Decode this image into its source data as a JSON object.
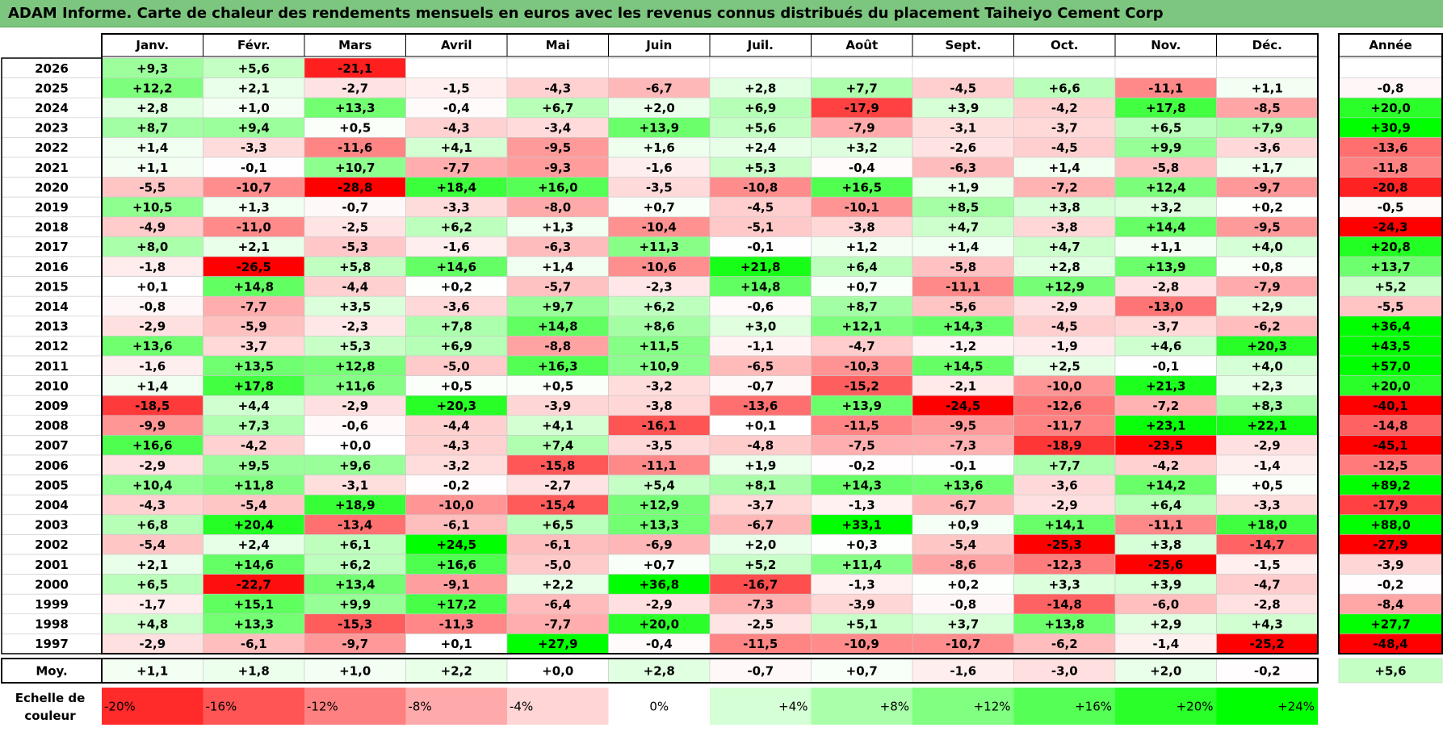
{
  "title": "ADAM Informe. Carte de chaleur des rendements mensuels en euros avec les revenus connus distribués du placement Taiheiyo Cement Corp",
  "chart_data": {
    "type": "heatmap",
    "months": [
      "Janv.",
      "Févr.",
      "Mars",
      "Avril",
      "Mai",
      "Juin",
      "Juil.",
      "Août",
      "Sept.",
      "Oct.",
      "Nov.",
      "Déc."
    ],
    "year_header": "Année",
    "rows": [
      {
        "year": "2026",
        "values": [
          "+9,3",
          "+5,6",
          "-21,1",
          null,
          null,
          null,
          null,
          null,
          null,
          null,
          null,
          null
        ],
        "annual": null
      },
      {
        "year": "2025",
        "values": [
          "+12,2",
          "+2,1",
          "-2,7",
          "-1,5",
          "-4,3",
          "-6,7",
          "+2,8",
          "+7,7",
          "-4,5",
          "+6,6",
          "-11,1",
          "+1,1"
        ],
        "annual": "-0,8"
      },
      {
        "year": "2024",
        "values": [
          "+2,8",
          "+1,0",
          "+13,3",
          "-0,4",
          "+6,7",
          "+2,0",
          "+6,9",
          "-17,9",
          "+3,9",
          "-4,2",
          "+17,8",
          "-8,5"
        ],
        "annual": "+20,0"
      },
      {
        "year": "2023",
        "values": [
          "+8,7",
          "+9,4",
          "+0,5",
          "-4,3",
          "-3,4",
          "+13,9",
          "+5,6",
          "-7,9",
          "-3,1",
          "-3,7",
          "+6,5",
          "+7,9"
        ],
        "annual": "+30,9"
      },
      {
        "year": "2022",
        "values": [
          "+1,4",
          "-3,3",
          "-11,6",
          "+4,1",
          "-9,5",
          "+1,6",
          "+2,4",
          "+3,2",
          "-2,6",
          "-4,5",
          "+9,9",
          "-3,6"
        ],
        "annual": "-13,6"
      },
      {
        "year": "2021",
        "values": [
          "+1,1",
          "-0,1",
          "+10,7",
          "-7,7",
          "-9,3",
          "-1,6",
          "+5,3",
          "-0,4",
          "-6,3",
          "+1,4",
          "-5,8",
          "+1,7"
        ],
        "annual": "-11,8"
      },
      {
        "year": "2020",
        "values": [
          "-5,5",
          "-10,7",
          "-28,8",
          "+18,4",
          "+16,0",
          "-3,5",
          "-10,8",
          "+16,5",
          "+1,9",
          "-7,2",
          "+12,4",
          "-9,7"
        ],
        "annual": "-20,8"
      },
      {
        "year": "2019",
        "values": [
          "+10,5",
          "+1,3",
          "-0,7",
          "-3,3",
          "-8,0",
          "+0,7",
          "-4,5",
          "-10,1",
          "+8,5",
          "+3,8",
          "+3,2",
          "+0,2"
        ],
        "annual": "-0,5"
      },
      {
        "year": "2018",
        "values": [
          "-4,9",
          "-11,0",
          "-2,5",
          "+6,2",
          "+1,3",
          "-10,4",
          "-5,1",
          "-3,8",
          "+4,7",
          "-3,8",
          "+14,4",
          "-9,5"
        ],
        "annual": "-24,3"
      },
      {
        "year": "2017",
        "values": [
          "+8,0",
          "+2,1",
          "-5,3",
          "-1,6",
          "-6,3",
          "+11,3",
          "-0,1",
          "+1,2",
          "+1,4",
          "+4,7",
          "+1,1",
          "+4,0"
        ],
        "annual": "+20,8"
      },
      {
        "year": "2016",
        "values": [
          "-1,8",
          "-26,5",
          "+5,8",
          "+14,6",
          "+1,4",
          "-10,6",
          "+21,8",
          "+6,4",
          "-5,8",
          "+2,8",
          "+13,9",
          "+0,8"
        ],
        "annual": "+13,7"
      },
      {
        "year": "2015",
        "values": [
          "+0,1",
          "+14,8",
          "-4,4",
          "+0,2",
          "-5,7",
          "-2,3",
          "+14,8",
          "+0,7",
          "-11,1",
          "+12,9",
          "-2,8",
          "-7,9"
        ],
        "annual": "+5,2"
      },
      {
        "year": "2014",
        "values": [
          "-0,8",
          "-7,7",
          "+3,5",
          "-3,6",
          "+9,7",
          "+6,2",
          "-0,6",
          "+8,7",
          "-5,6",
          "-2,9",
          "-13,0",
          "+2,9"
        ],
        "annual": "-5,5"
      },
      {
        "year": "2013",
        "values": [
          "-2,9",
          "-5,9",
          "-2,3",
          "+7,8",
          "+14,8",
          "+8,6",
          "+3,0",
          "+12,1",
          "+14,3",
          "-4,5",
          "-3,7",
          "-6,2"
        ],
        "annual": "+36,4"
      },
      {
        "year": "2012",
        "values": [
          "+13,6",
          "-3,7",
          "+5,3",
          "+6,9",
          "-8,8",
          "+11,5",
          "-1,1",
          "-4,7",
          "-1,2",
          "-1,9",
          "+4,6",
          "+20,3"
        ],
        "annual": "+43,5"
      },
      {
        "year": "2011",
        "values": [
          "-1,6",
          "+13,5",
          "+12,8",
          "-5,0",
          "+16,3",
          "+10,9",
          "-6,5",
          "-10,3",
          "+14,5",
          "+2,5",
          "-0,1",
          "+4,0"
        ],
        "annual": "+57,0"
      },
      {
        "year": "2010",
        "values": [
          "+1,4",
          "+17,8",
          "+11,6",
          "+0,5",
          "+0,5",
          "-3,2",
          "-0,7",
          "-15,2",
          "-2,1",
          "-10,0",
          "+21,3",
          "+2,3"
        ],
        "annual": "+20,0"
      },
      {
        "year": "2009",
        "values": [
          "-18,5",
          "+4,4",
          "-2,9",
          "+20,3",
          "-3,9",
          "-3,8",
          "-13,6",
          "+13,9",
          "-24,5",
          "-12,6",
          "-7,2",
          "+8,3"
        ],
        "annual": "-40,1"
      },
      {
        "year": "2008",
        "values": [
          "-9,9",
          "+7,3",
          "-0,6",
          "-4,4",
          "+4,1",
          "-16,1",
          "+0,1",
          "-11,5",
          "-9,5",
          "-11,7",
          "+23,1",
          "+22,1"
        ],
        "annual": "-14,8"
      },
      {
        "year": "2007",
        "values": [
          "+16,6",
          "-4,2",
          "+0,0",
          "-4,3",
          "+7,4",
          "-3,5",
          "-4,8",
          "-7,5",
          "-7,3",
          "-18,9",
          "-23,5",
          "-2,9"
        ],
        "annual": "-45,1"
      },
      {
        "year": "2006",
        "values": [
          "-2,9",
          "+9,5",
          "+9,6",
          "-3,2",
          "-15,8",
          "-11,1",
          "+1,9",
          "-0,2",
          "-0,1",
          "+7,7",
          "-4,2",
          "-1,4"
        ],
        "annual": "-12,5"
      },
      {
        "year": "2005",
        "values": [
          "+10,4",
          "+11,8",
          "-3,1",
          "-0,2",
          "-2,7",
          "+5,4",
          "+8,1",
          "+14,3",
          "+13,6",
          "-3,6",
          "+14,2",
          "+0,5"
        ],
        "annual": "+89,2"
      },
      {
        "year": "2004",
        "values": [
          "-4,3",
          "-5,4",
          "+18,9",
          "-10,0",
          "-15,4",
          "+12,9",
          "-3,7",
          "-1,3",
          "-6,7",
          "-2,9",
          "+6,4",
          "-3,3"
        ],
        "annual": "-17,9"
      },
      {
        "year": "2003",
        "values": [
          "+6,8",
          "+20,4",
          "-13,4",
          "-6,1",
          "+6,5",
          "+13,3",
          "-6,7",
          "+33,1",
          "+0,9",
          "+14,1",
          "-11,1",
          "+18,0"
        ],
        "annual": "+88,0"
      },
      {
        "year": "2002",
        "values": [
          "-5,4",
          "+2,4",
          "+6,1",
          "+24,5",
          "-6,1",
          "-6,9",
          "+2,0",
          "+0,3",
          "-5,4",
          "-25,3",
          "+3,8",
          "-14,7"
        ],
        "annual": "-27,9"
      },
      {
        "year": "2001",
        "values": [
          "+2,1",
          "+14,6",
          "+6,2",
          "+16,6",
          "-5,0",
          "+0,7",
          "+5,2",
          "+11,4",
          "-8,6",
          "-12,3",
          "-25,6",
          "-1,5"
        ],
        "annual": "-3,9"
      },
      {
        "year": "2000",
        "values": [
          "+6,5",
          "-22,7",
          "+13,4",
          "-9,1",
          "+2,2",
          "+36,8",
          "-16,7",
          "-1,3",
          "+0,2",
          "+3,3",
          "+3,9",
          "-4,7"
        ],
        "annual": "-0,2"
      },
      {
        "year": "1999",
        "values": [
          "-1,7",
          "+15,1",
          "+9,9",
          "+17,2",
          "-6,4",
          "-2,9",
          "-7,3",
          "-3,9",
          "-0,8",
          "-14,8",
          "-6,0",
          "-2,8"
        ],
        "annual": "-8,4"
      },
      {
        "year": "1998",
        "values": [
          "+4,8",
          "+13,3",
          "-15,3",
          "-11,3",
          "-7,7",
          "+20,0",
          "-2,5",
          "+5,1",
          "+3,7",
          "+13,8",
          "+2,9",
          "+4,3"
        ],
        "annual": "+27,7"
      },
      {
        "year": "1997",
        "values": [
          "-2,9",
          "-6,1",
          "-9,7",
          "+0,1",
          "+27,9",
          "-0,4",
          "-11,5",
          "-10,9",
          "-10,7",
          "-6,2",
          "-1,4",
          "-25,2"
        ],
        "annual": "-48,4"
      }
    ],
    "average_row": {
      "label": "Moy.",
      "values": [
        "+1,1",
        "+1,8",
        "+1,0",
        "+2,2",
        "+0,0",
        "+2,8",
        "-0,7",
        "+0,7",
        "-1,6",
        "-3,0",
        "+2,0",
        "-0,2"
      ],
      "annual": "+5,6"
    },
    "legend": {
      "label_line1": "Echelle de",
      "label_line2": "couleur",
      "stops": [
        "-20%",
        "-16%",
        "-12%",
        "-8%",
        "-4%",
        "0%",
        "+4%",
        "+8%",
        "+12%",
        "+16%",
        "+20%",
        "+24%"
      ]
    },
    "colors": {
      "negative_max": "#ff0000",
      "neutral": "#ffffff",
      "positive_max": "#00ff00",
      "title_background": "#7dc67f"
    }
  }
}
